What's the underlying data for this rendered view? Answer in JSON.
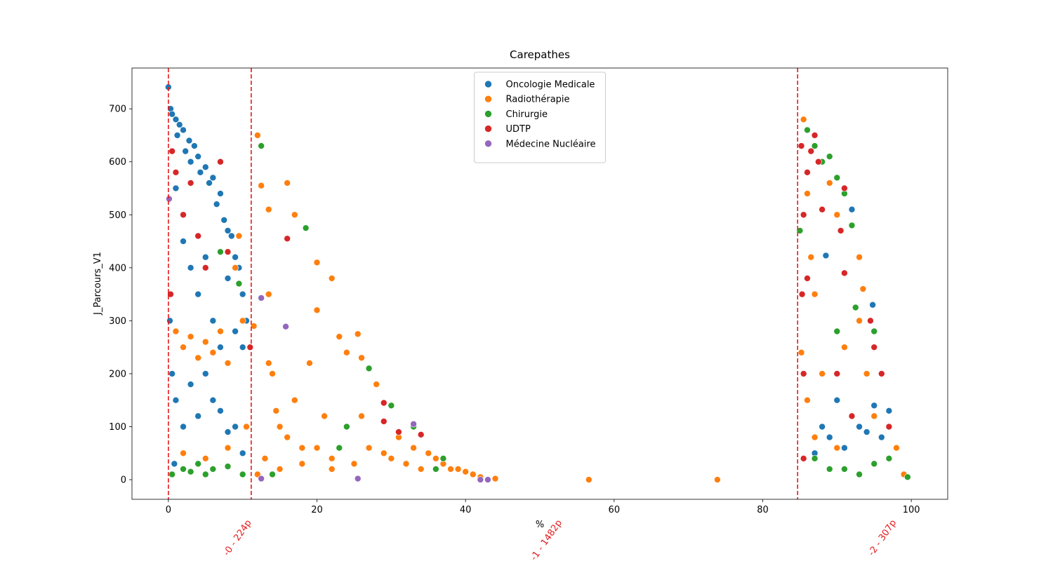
{
  "chart_data": {
    "type": "scatter",
    "title": "Carepathes",
    "x_label": "%",
    "y_label": "J_Parcours_V1",
    "xlim": [
      -4.9,
      104.9
    ],
    "ylim": [
      -37,
      777
    ],
    "xticks": [
      0,
      20,
      40,
      60,
      80,
      100
    ],
    "yticks": [
      0,
      100,
      200,
      300,
      400,
      500,
      600,
      700
    ],
    "legend": "upper center",
    "vlines": [
      0,
      11.15,
      84.7
    ],
    "vline_color": "#e31a1c",
    "annotations": [
      {
        "text": "-0 - 224p",
        "x": 11.2
      },
      {
        "text": "-1 - 1482p",
        "x": 53
      },
      {
        "text": "-2 - 307p",
        "x": 98
      }
    ],
    "series": [
      {
        "name": "Oncologie Medicale",
        "color": "#1f77b4",
        "x": [
          0,
          0.3,
          0.5,
          1,
          1.2,
          1.5,
          2,
          2.3,
          2.8,
          3,
          3.5,
          4,
          4.3,
          5,
          5.5,
          6,
          6.5,
          7,
          7.5,
          8,
          8.5,
          9,
          9.5,
          10,
          10.5,
          0.5,
          1,
          2,
          3,
          4,
          5,
          6,
          7,
          8,
          9,
          10,
          1,
          2,
          3,
          4,
          5,
          6,
          7,
          8,
          9,
          10,
          0.2,
          0.8,
          87,
          88,
          89,
          90,
          91,
          92,
          93,
          94,
          95,
          96,
          97,
          98,
          88.5,
          94.8,
          92
        ],
        "values": [
          741,
          700,
          690,
          680,
          650,
          670,
          660,
          620,
          640,
          600,
          630,
          610,
          580,
          590,
          560,
          570,
          520,
          540,
          490,
          470,
          460,
          420,
          400,
          350,
          300,
          200,
          550,
          450,
          400,
          350,
          420,
          300,
          250,
          380,
          280,
          250,
          150,
          100,
          180,
          120,
          200,
          150,
          130,
          90,
          100,
          50,
          300,
          30,
          50,
          100,
          80,
          150,
          60,
          120,
          100,
          90,
          140,
          80,
          130,
          60,
          423,
          330,
          510
        ]
      },
      {
        "name": "Radiothérapie",
        "color": "#ff7f0e",
        "x": [
          1,
          2,
          3,
          4,
          5,
          6,
          7,
          8,
          9,
          9.5,
          10,
          11.5,
          2,
          5,
          8,
          10.5,
          12,
          12.5,
          13.5,
          13.5,
          13.5,
          14,
          14.5,
          15,
          16,
          16,
          17,
          17,
          18,
          19,
          20,
          20,
          20,
          21,
          22,
          22,
          23,
          24,
          25,
          25.5,
          26,
          26,
          27,
          28,
          29,
          30,
          31,
          32,
          33,
          34,
          35,
          36,
          37,
          38,
          39,
          40,
          41,
          42,
          44,
          56.6,
          73.9,
          12,
          13,
          15,
          18,
          22,
          85.2,
          85.5,
          86,
          86.5,
          87,
          86,
          87,
          88,
          89,
          90,
          90,
          91,
          92,
          93,
          93,
          93.5,
          94,
          95,
          96,
          97,
          98,
          99
        ],
        "values": [
          280,
          250,
          270,
          230,
          260,
          240,
          280,
          220,
          400,
          460,
          300,
          290,
          50,
          40,
          60,
          100,
          650,
          555,
          510,
          350,
          220,
          200,
          130,
          100,
          560,
          80,
          500,
          150,
          60,
          220,
          410,
          320,
          60,
          120,
          380,
          40,
          270,
          240,
          30,
          275,
          230,
          120,
          60,
          180,
          50,
          40,
          80,
          30,
          60,
          20,
          50,
          40,
          30,
          20,
          20,
          15,
          10,
          5,
          2,
          0,
          0,
          10,
          40,
          20,
          30,
          20,
          240,
          680,
          540,
          420,
          350,
          150,
          80,
          200,
          560,
          500,
          60,
          250,
          480,
          420,
          300,
          360,
          200,
          120,
          200,
          100,
          60,
          10
        ]
      },
      {
        "name": "Chirurgie",
        "color": "#2ca02c",
        "x": [
          0.5,
          2,
          3,
          4,
          5,
          6,
          7,
          8,
          9.5,
          10,
          12.5,
          14,
          18.5,
          23,
          24,
          27,
          30,
          33,
          36,
          37,
          86,
          87,
          88,
          89,
          90,
          91,
          92,
          90,
          92.5,
          95,
          85,
          87,
          89,
          91,
          93,
          95,
          97,
          99.5
        ],
        "values": [
          10,
          20,
          15,
          30,
          10,
          20,
          430,
          25,
          370,
          10,
          630,
          10,
          475,
          60,
          100,
          210,
          140,
          100,
          20,
          40,
          660,
          630,
          600,
          610,
          570,
          540,
          480,
          280,
          325,
          280,
          470,
          40,
          20,
          20,
          10,
          30,
          40,
          5
        ]
      },
      {
        "name": "UDTP",
        "color": "#d62728",
        "x": [
          0.5,
          1,
          2,
          3,
          4,
          5,
          7,
          8,
          0.3,
          11,
          16,
          29,
          29,
          31,
          34,
          85.2,
          85.5,
          85.3,
          85.5,
          85.5,
          86,
          86.5,
          87,
          87.5,
          88,
          90,
          91,
          91,
          92,
          94.5,
          95,
          96,
          97,
          86,
          90.5
        ],
        "values": [
          620,
          580,
          500,
          560,
          460,
          400,
          600,
          430,
          350,
          250,
          455,
          145,
          110,
          90,
          85,
          630,
          500,
          350,
          200,
          40,
          580,
          620,
          650,
          600,
          510,
          200,
          550,
          390,
          120,
          300,
          250,
          200,
          100,
          380,
          470
        ]
      },
      {
        "name": "Médecine Nucléaire",
        "color": "#9467bd",
        "x": [
          0.1,
          12.5,
          15.8,
          12.5,
          25.5,
          42,
          43,
          33
        ],
        "values": [
          530,
          343,
          289,
          2,
          2,
          0,
          0,
          105
        ]
      }
    ]
  }
}
